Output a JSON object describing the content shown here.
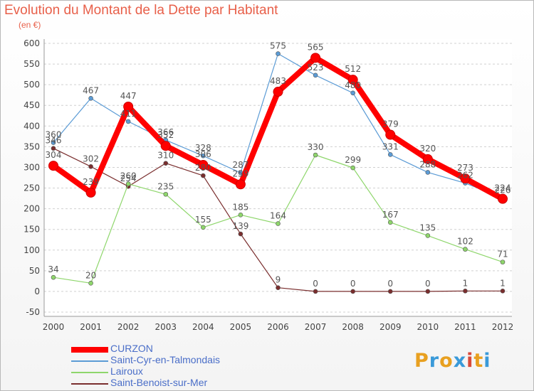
{
  "chart_data": {
    "type": "line",
    "title": "Evolution du Montant de la Dette par Habitant",
    "subtitle": "(en €)",
    "xlabel": "",
    "ylabel": "",
    "categories": [
      "2000",
      "2001",
      "2002",
      "2003",
      "2004",
      "2005",
      "2006",
      "2007",
      "2008",
      "2009",
      "2010",
      "2011",
      "2012"
    ],
    "ylim": [
      -50,
      600
    ],
    "yticks": [
      -50,
      0,
      50,
      100,
      150,
      200,
      250,
      300,
      350,
      400,
      450,
      500,
      550,
      600
    ],
    "grid": "horizontal dashed",
    "legend": "bottom-left",
    "series": [
      {
        "name": "CURZON",
        "color": "#ff0000",
        "values": [
          304,
          239,
          447,
          352,
          306,
          259,
          483,
          565,
          512,
          379,
          320,
          273,
          224
        ]
      },
      {
        "name": "Saint-Cyr-en-Talmondais",
        "color": "#5b9bd5",
        "values": [
          360,
          467,
          411,
          366,
          328,
          287,
          575,
          523,
          480,
          331,
          288,
          262,
          226
        ]
      },
      {
        "name": "Lairoux",
        "color": "#8ed66b",
        "values": [
          34,
          20,
          260,
          235,
          155,
          185,
          164,
          330,
          299,
          167,
          135,
          102,
          71
        ]
      },
      {
        "name": "Saint-Benoist-sur-Mer",
        "color": "#7a2e2e",
        "values": [
          346,
          302,
          254,
          310,
          280,
          139,
          9,
          0,
          0,
          0,
          0,
          1,
          1
        ]
      }
    ]
  },
  "logo": {
    "text": "Proxiti",
    "colors": [
      "#e8a020",
      "#3a9ad9",
      "#e8a020",
      "#3a9ad9",
      "#d94a3a",
      "#e8a020",
      "#3a9ad9"
    ]
  }
}
